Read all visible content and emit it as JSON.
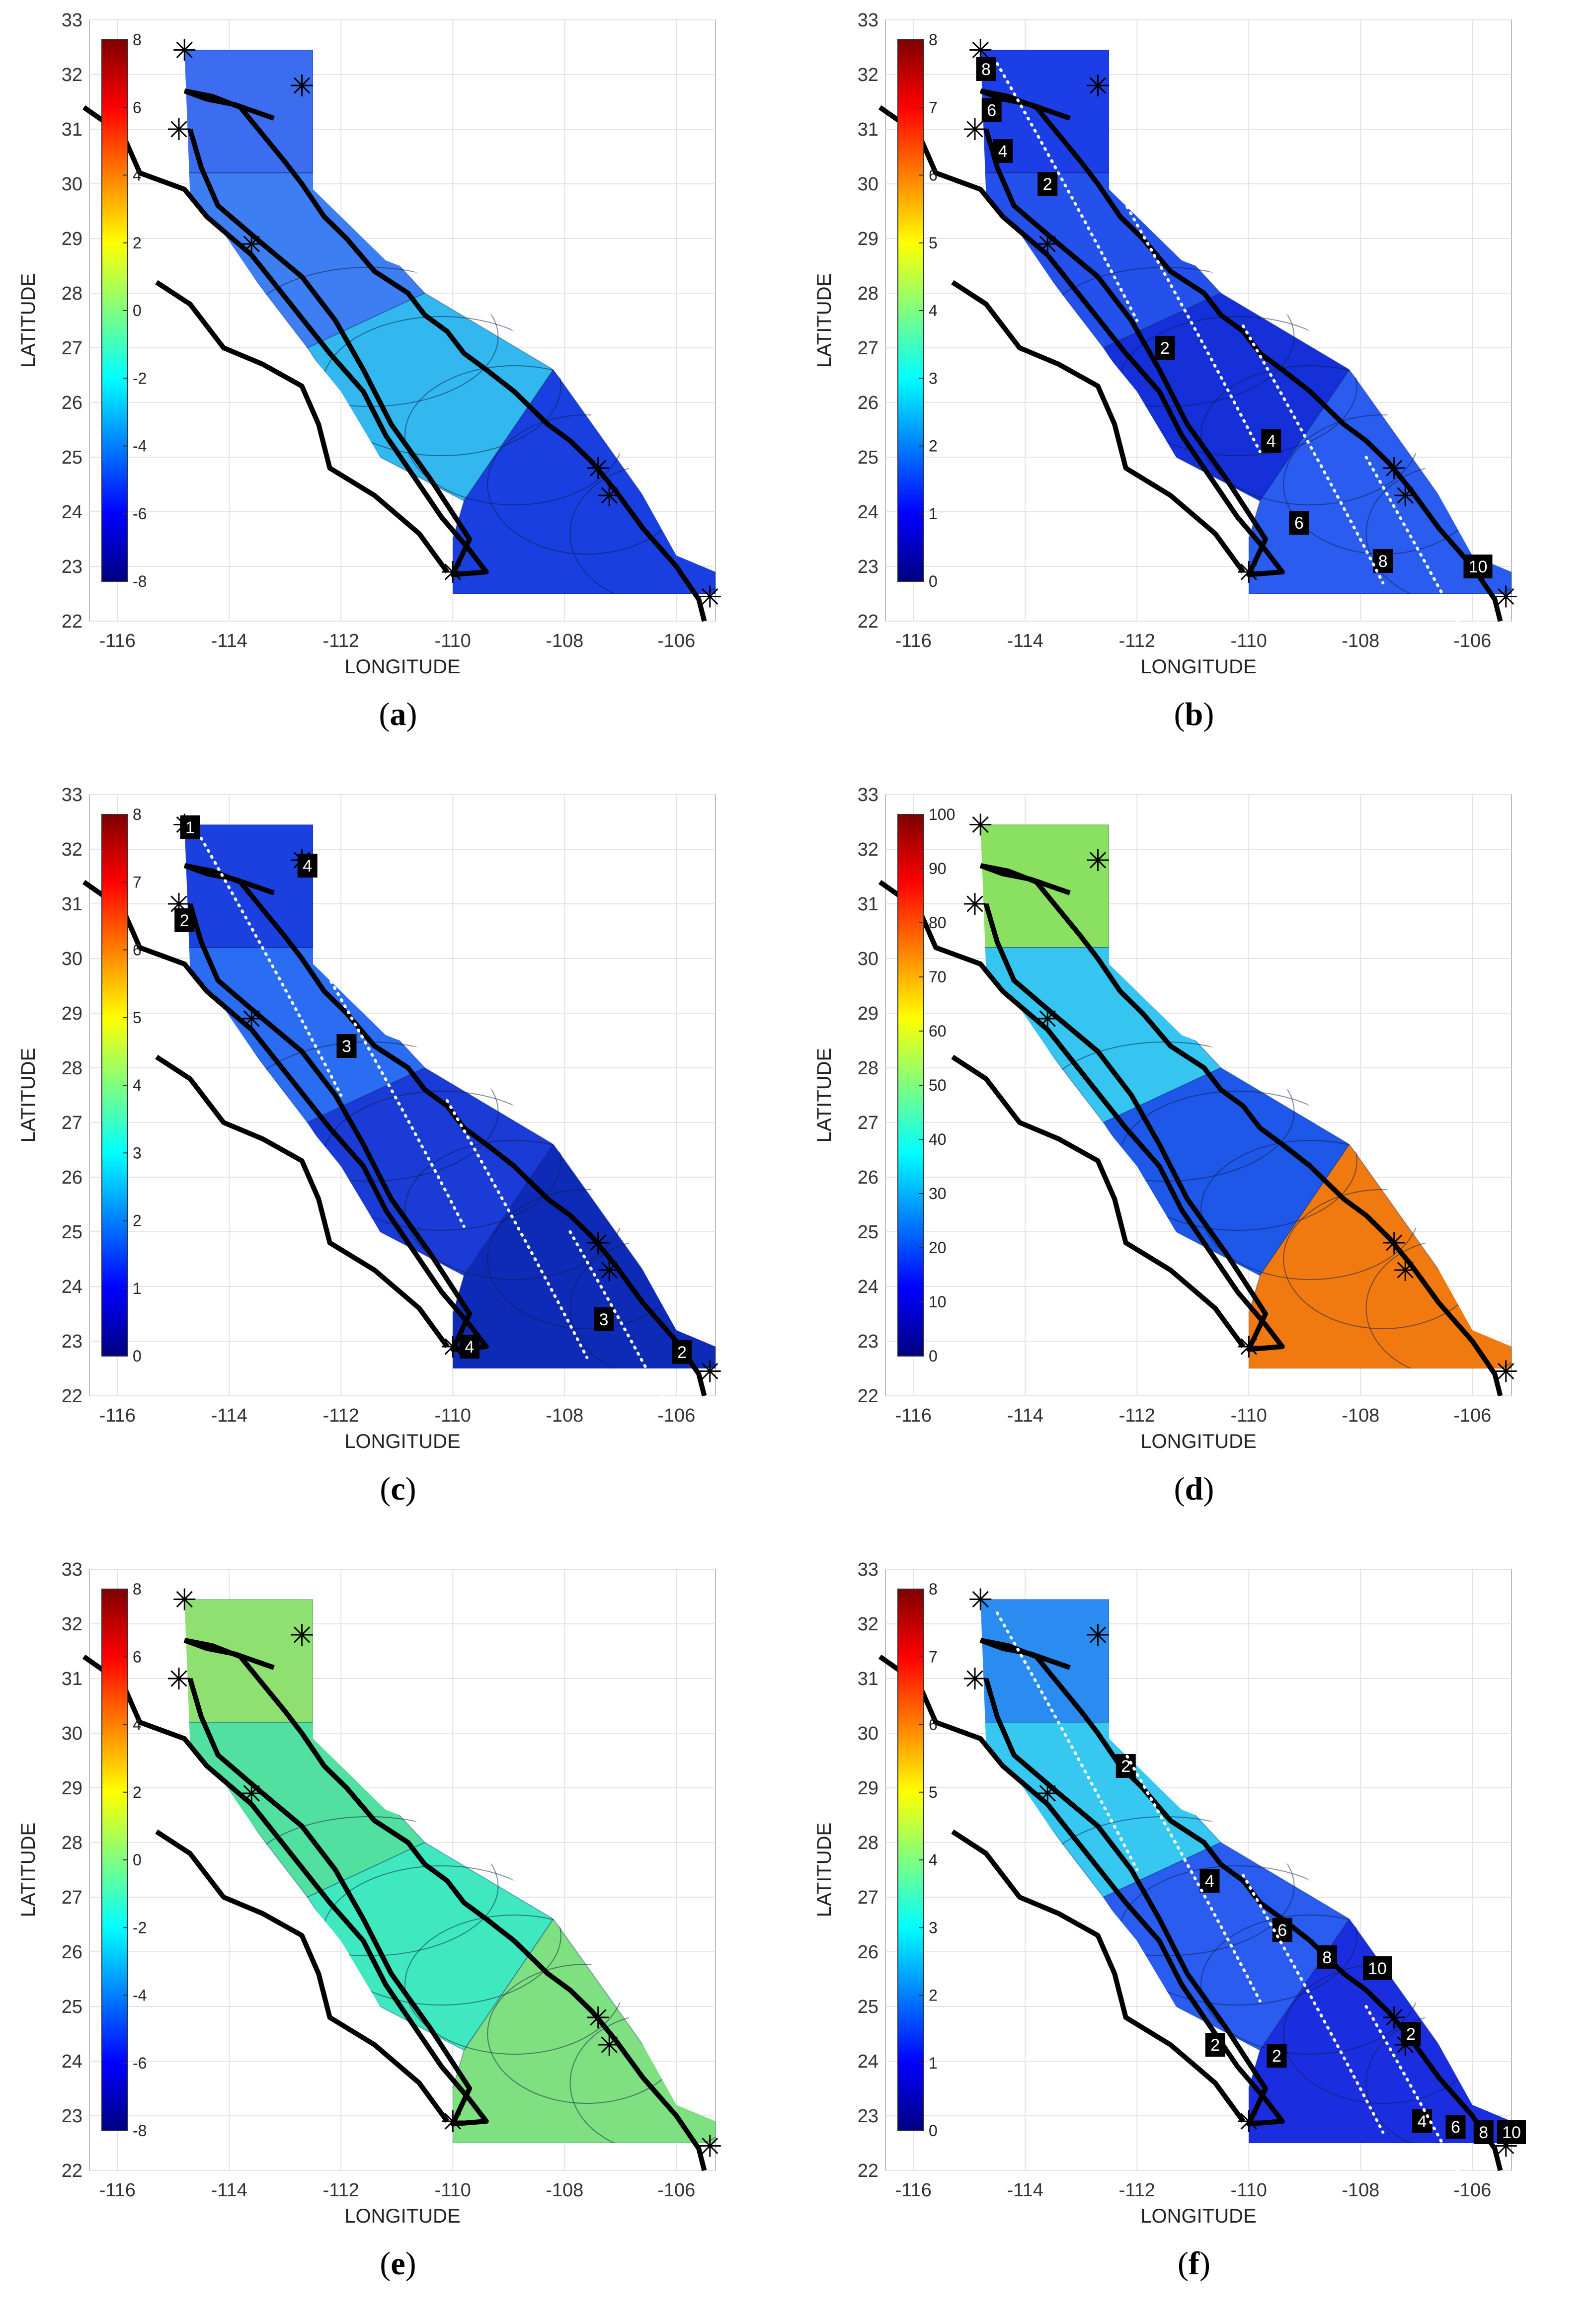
{
  "axes": {
    "xlabel": "LONGITUDE",
    "ylabel": "LATITUDE",
    "xticks": [
      "-116",
      "-114",
      "-112",
      "-110",
      "-108",
      "-106"
    ],
    "yticks": [
      "22",
      "23",
      "24",
      "25",
      "26",
      "27",
      "28",
      "29",
      "30",
      "31",
      "32",
      "33"
    ]
  },
  "panels": [
    {
      "caption": "a",
      "colorbar_ticks": [
        "-8",
        "-6",
        "-4",
        "-2",
        "0",
        "2",
        "4",
        "6",
        "8"
      ],
      "fill_colors": [
        "#3c6cf0",
        "#3d7ef2",
        "#32b8ee",
        "#1a3fe0"
      ],
      "contour_labels": []
    },
    {
      "caption": "b",
      "colorbar_ticks": [
        "0",
        "1",
        "2",
        "3",
        "4",
        "5",
        "6",
        "7",
        "8"
      ],
      "fill_colors": [
        "#1c3ee6",
        "#2450ec",
        "#1530d8",
        "#2a5cf0"
      ],
      "contour_labels": [
        "8",
        "6",
        "4",
        "2",
        "2",
        "4",
        "6",
        "8",
        "10"
      ]
    },
    {
      "caption": "c",
      "colorbar_ticks": [
        "0",
        "1",
        "2",
        "3",
        "4",
        "5",
        "6",
        "7",
        "8"
      ],
      "fill_colors": [
        "#1a40e0",
        "#2a6cf2",
        "#1a3bd6",
        "#0e2bb8"
      ],
      "contour_labels": [
        "1",
        "4",
        "2",
        "3",
        "4",
        "3",
        "2"
      ]
    },
    {
      "caption": "d",
      "colorbar_ticks": [
        "0",
        "10",
        "20",
        "30",
        "40",
        "50",
        "60",
        "70",
        "80",
        "90",
        "100"
      ],
      "fill_colors": [
        "#8ae060",
        "#36c4f0",
        "#1e58e8",
        "#f07a10"
      ],
      "contour_labels": []
    },
    {
      "caption": "e",
      "colorbar_ticks": [
        "-8",
        "-6",
        "-4",
        "-2",
        "0",
        "2",
        "4",
        "6",
        "8"
      ],
      "fill_colors": [
        "#8ee070",
        "#52e0a0",
        "#40e8c0",
        "#7ee080"
      ],
      "contour_labels": []
    },
    {
      "caption": "f",
      "colorbar_ticks": [
        "0",
        "1",
        "2",
        "3",
        "4",
        "5",
        "6",
        "7",
        "8"
      ],
      "fill_colors": [
        "#2a8cf0",
        "#36c8f0",
        "#2a5cf0",
        "#1a2ee0"
      ],
      "contour_labels": [
        "2",
        "4",
        "6",
        "8",
        "10",
        "2",
        "2",
        "2",
        "4",
        "6",
        "8",
        "10"
      ]
    }
  ]
}
